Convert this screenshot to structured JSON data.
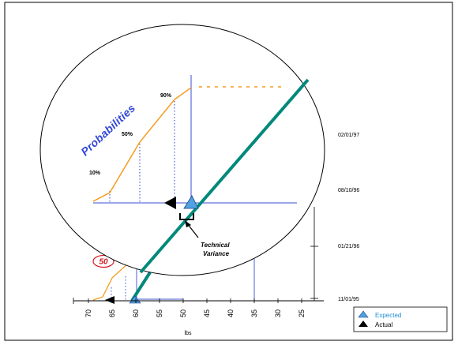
{
  "x_axis": {
    "title": "lbs",
    "ticks": [
      "70",
      "65",
      "60",
      "55",
      "50",
      "45",
      "40",
      "35",
      "30",
      "25"
    ]
  },
  "date_labels": [
    "02/01/97",
    "08/10/96",
    "01/21/96",
    "11/01/95"
  ],
  "probabilities": {
    "title": "Probabilities",
    "levels": [
      "10%",
      "50%",
      "90%"
    ]
  },
  "badge": "50",
  "annotation": {
    "line1": "Technical",
    "line2": "Variance"
  },
  "legend": {
    "expected": "Expected",
    "actual": "Actual"
  },
  "colors": {
    "expected_line": "#00897b",
    "probability_curve": "#f59b1f",
    "guide_lines": "#3a4fd0",
    "probabilities_text": "#3348d6",
    "expected_marker": "#4fa3e0",
    "badge": "#d51a25",
    "expected_legend_text": "#1f8fd1"
  }
}
